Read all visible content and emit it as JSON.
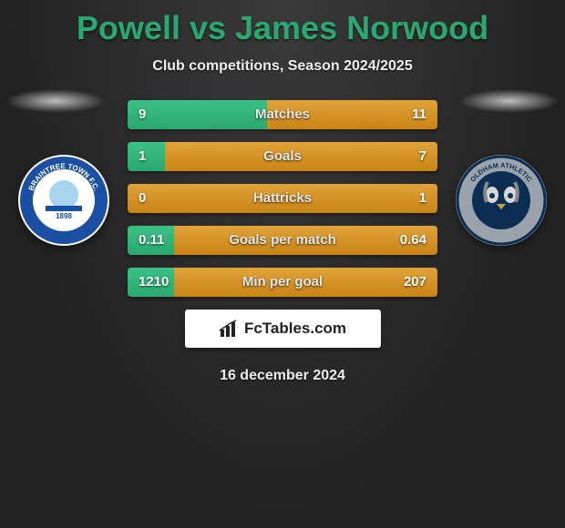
{
  "title": "Powell vs James Norwood",
  "subtitle": "Club competitions, Season 2024/2025",
  "date": "16 december 2024",
  "brand": "FcTables.com",
  "colors": {
    "left_fill": "linear-gradient(#3bc185, #2aa86f)",
    "right_fill": "linear-gradient(#e0a23a, #c98414)",
    "row_bg": "linear-gradient(#555, #3a3a3a)",
    "title": "#2aa86f"
  },
  "badge_left": {
    "bg": "#ffffff",
    "ring": "#1a4fa3",
    "text": "BRAINTREE TOWN F.C. THE IRON 1898",
    "text_color": "#1a4fa3"
  },
  "badge_right": {
    "bg": "#9aa3ac",
    "ring": "#0b2e52",
    "text": "OLDHAM ATHLETIC A.F.C.",
    "text_color": "#fff"
  },
  "rows": [
    {
      "label": "Matches",
      "left": "9",
      "right": "11",
      "left_pct": 45,
      "right_pct": 55
    },
    {
      "label": "Goals",
      "left": "1",
      "right": "7",
      "left_pct": 12,
      "right_pct": 88
    },
    {
      "label": "Hattricks",
      "left": "0",
      "right": "1",
      "left_pct": 0,
      "right_pct": 100
    },
    {
      "label": "Goals per match",
      "left": "0.11",
      "right": "0.64",
      "left_pct": 15,
      "right_pct": 85
    },
    {
      "label": "Min per goal",
      "left": "1210",
      "right": "207",
      "left_pct": 15,
      "right_pct": 85
    }
  ]
}
